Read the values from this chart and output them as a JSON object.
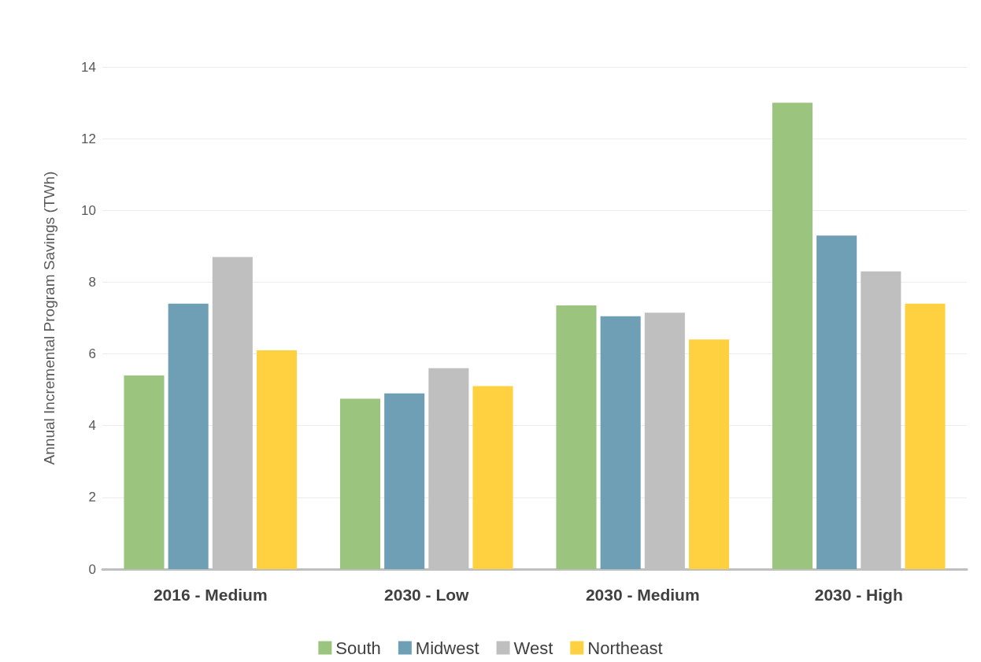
{
  "chart_data": {
    "type": "bar",
    "ylabel": "Annual Incremental Program Savings (TWh)",
    "categories": [
      "2016 - Medium",
      "2030 - Low",
      "2030 - Medium",
      "2030 - High"
    ],
    "series": [
      {
        "name": "South",
        "color": "#9bc47f",
        "values": [
          5.4,
          4.75,
          7.35,
          13
        ]
      },
      {
        "name": "Midwest",
        "color": "#6f9fb5",
        "values": [
          7.4,
          4.9,
          7.05,
          9.3
        ]
      },
      {
        "name": "West",
        "color": "#bfbfbf",
        "values": [
          8.7,
          5.6,
          7.15,
          8.3
        ]
      },
      {
        "name": "Northeast",
        "color": "#ffd040",
        "values": [
          6.1,
          5.1,
          6.4,
          7.4
        ]
      }
    ],
    "ylim": [
      0,
      14
    ],
    "yticks": [
      0,
      2,
      4,
      6,
      8,
      10,
      12,
      14
    ],
    "grid": "y",
    "legend": "bottom"
  }
}
